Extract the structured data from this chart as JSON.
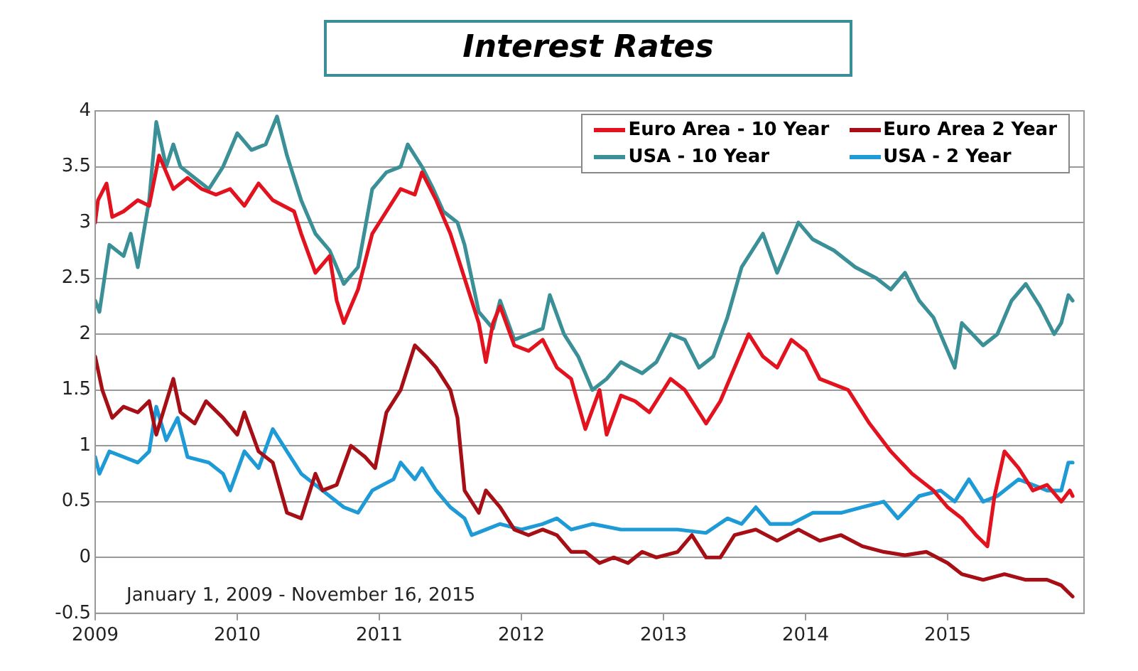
{
  "chart_data": {
    "type": "line",
    "title": "Interest Rates",
    "annotations": [
      "January 1, 2009 - November 16, 2015"
    ],
    "xlim": [
      2009,
      2015.96
    ],
    "xticks": [
      2009,
      2010,
      2011,
      2012,
      2013,
      2014,
      2015
    ],
    "ylim": [
      -0.5,
      4
    ],
    "yticks": [
      -0.5,
      0,
      0.5,
      1,
      1.5,
      2,
      2.5,
      3,
      3.5,
      4
    ],
    "grid": "y",
    "legend": "top right",
    "line_style": "solid",
    "series": [
      {
        "name": "Euro Area - 10 Year",
        "color": "#e2121e",
        "x": [
          2009.0,
          2009.02,
          2009.08,
          2009.12,
          2009.2,
          2009.3,
          2009.38,
          2009.45,
          2009.55,
          2009.65,
          2009.75,
          2009.85,
          2009.95,
          2010.05,
          2010.15,
          2010.25,
          2010.4,
          2010.45,
          2010.55,
          2010.65,
          2010.7,
          2010.75,
          2010.85,
          2010.95,
          2011.05,
          2011.15,
          2011.25,
          2011.3,
          2011.4,
          2011.5,
          2011.6,
          2011.7,
          2011.75,
          2011.8,
          2011.85,
          2011.95,
          2012.05,
          2012.15,
          2012.25,
          2012.35,
          2012.45,
          2012.55,
          2012.6,
          2012.7,
          2012.8,
          2012.9,
          2013.05,
          2013.15,
          2013.3,
          2013.4,
          2013.5,
          2013.6,
          2013.7,
          2013.8,
          2013.9,
          2014.0,
          2014.1,
          2014.3,
          2014.45,
          2014.6,
          2014.75,
          2014.9,
          2015.0,
          2015.1,
          2015.2,
          2015.28,
          2015.33,
          2015.4,
          2015.5,
          2015.6,
          2015.7,
          2015.8,
          2015.86,
          2015.88
        ],
        "values": [
          3.0,
          3.2,
          3.35,
          3.05,
          3.1,
          3.2,
          3.15,
          3.6,
          3.3,
          3.4,
          3.3,
          3.25,
          3.3,
          3.15,
          3.35,
          3.2,
          3.1,
          2.9,
          2.55,
          2.7,
          2.3,
          2.1,
          2.4,
          2.9,
          3.1,
          3.3,
          3.25,
          3.45,
          3.2,
          2.9,
          2.5,
          2.1,
          1.75,
          2.1,
          2.25,
          1.9,
          1.85,
          1.95,
          1.7,
          1.6,
          1.15,
          1.5,
          1.1,
          1.45,
          1.4,
          1.3,
          1.6,
          1.5,
          1.2,
          1.4,
          1.7,
          2.0,
          1.8,
          1.7,
          1.95,
          1.85,
          1.6,
          1.5,
          1.2,
          0.95,
          0.75,
          0.6,
          0.45,
          0.35,
          0.2,
          0.1,
          0.55,
          0.95,
          0.8,
          0.6,
          0.65,
          0.5,
          0.6,
          0.55
        ]
      },
      {
        "name": "Euro Area 2 Year",
        "color": "#a50f15",
        "x": [
          2009.0,
          2009.05,
          2009.12,
          2009.2,
          2009.3,
          2009.38,
          2009.43,
          2009.55,
          2009.6,
          2009.7,
          2009.78,
          2009.9,
          2010.0,
          2010.05,
          2010.15,
          2010.25,
          2010.35,
          2010.45,
          2010.55,
          2010.6,
          2010.7,
          2010.8,
          2010.9,
          2010.97,
          2011.05,
          2011.15,
          2011.25,
          2011.33,
          2011.4,
          2011.5,
          2011.55,
          2011.6,
          2011.7,
          2011.75,
          2011.85,
          2011.95,
          2012.05,
          2012.15,
          2012.25,
          2012.35,
          2012.45,
          2012.55,
          2012.65,
          2012.75,
          2012.85,
          2012.95,
          2013.1,
          2013.2,
          2013.3,
          2013.4,
          2013.5,
          2013.65,
          2013.8,
          2013.95,
          2014.1,
          2014.25,
          2014.4,
          2014.55,
          2014.7,
          2014.85,
          2015.0,
          2015.1,
          2015.25,
          2015.4,
          2015.55,
          2015.7,
          2015.8,
          2015.88
        ],
        "values": [
          1.8,
          1.5,
          1.25,
          1.35,
          1.3,
          1.4,
          1.1,
          1.6,
          1.3,
          1.2,
          1.4,
          1.25,
          1.1,
          1.3,
          0.95,
          0.85,
          0.4,
          0.35,
          0.75,
          0.6,
          0.65,
          1.0,
          0.9,
          0.8,
          1.3,
          1.5,
          1.9,
          1.8,
          1.7,
          1.5,
          1.25,
          0.6,
          0.4,
          0.6,
          0.45,
          0.25,
          0.2,
          0.25,
          0.2,
          0.05,
          0.05,
          -0.05,
          0.0,
          -0.05,
          0.05,
          0.0,
          0.05,
          0.2,
          0.0,
          0.0,
          0.2,
          0.25,
          0.15,
          0.25,
          0.15,
          0.2,
          0.1,
          0.05,
          0.02,
          0.05,
          -0.05,
          -0.15,
          -0.2,
          -0.15,
          -0.2,
          -0.2,
          -0.25,
          -0.35
        ]
      },
      {
        "name": "USA - 10 Year",
        "color": "#3a9096",
        "x": [
          2009.0,
          2009.03,
          2009.1,
          2009.2,
          2009.25,
          2009.3,
          2009.38,
          2009.43,
          2009.5,
          2009.55,
          2009.6,
          2009.7,
          2009.8,
          2009.9,
          2010.0,
          2010.1,
          2010.2,
          2010.28,
          2010.35,
          2010.45,
          2010.55,
          2010.65,
          2010.75,
          2010.85,
          2010.95,
          2011.05,
          2011.15,
          2011.2,
          2011.3,
          2011.38,
          2011.45,
          2011.55,
          2011.6,
          2011.7,
          2011.8,
          2011.85,
          2011.95,
          2012.05,
          2012.15,
          2012.2,
          2012.3,
          2012.4,
          2012.5,
          2012.6,
          2012.7,
          2012.85,
          2012.95,
          2013.05,
          2013.15,
          2013.25,
          2013.35,
          2013.45,
          2013.55,
          2013.7,
          2013.8,
          2013.95,
          2014.05,
          2014.2,
          2014.35,
          2014.5,
          2014.6,
          2014.7,
          2014.8,
          2014.9,
          2015.05,
          2015.1,
          2015.25,
          2015.35,
          2015.45,
          2015.55,
          2015.65,
          2015.75,
          2015.8,
          2015.85,
          2015.88
        ],
        "values": [
          2.3,
          2.2,
          2.8,
          2.7,
          2.9,
          2.6,
          3.2,
          3.9,
          3.5,
          3.7,
          3.5,
          3.4,
          3.3,
          3.5,
          3.8,
          3.65,
          3.7,
          3.95,
          3.6,
          3.2,
          2.9,
          2.75,
          2.45,
          2.6,
          3.3,
          3.45,
          3.5,
          3.7,
          3.5,
          3.3,
          3.1,
          3.0,
          2.8,
          2.2,
          2.05,
          2.3,
          1.95,
          2.0,
          2.05,
          2.35,
          2.0,
          1.8,
          1.5,
          1.6,
          1.75,
          1.65,
          1.75,
          2.0,
          1.95,
          1.7,
          1.8,
          2.15,
          2.6,
          2.9,
          2.55,
          3.0,
          2.85,
          2.75,
          2.6,
          2.5,
          2.4,
          2.55,
          2.3,
          2.15,
          1.7,
          2.1,
          1.9,
          2.0,
          2.3,
          2.45,
          2.25,
          2.0,
          2.1,
          2.35,
          2.3
        ]
      },
      {
        "name": "USA - 2 Year",
        "color": "#1e9ad6",
        "x": [
          2009.0,
          2009.03,
          2009.1,
          2009.2,
          2009.3,
          2009.38,
          2009.43,
          2009.5,
          2009.58,
          2009.65,
          2009.8,
          2009.9,
          2009.95,
          2010.05,
          2010.15,
          2010.25,
          2010.35,
          2010.45,
          2010.6,
          2010.75,
          2010.85,
          2010.95,
          2011.1,
          2011.15,
          2011.25,
          2011.3,
          2011.4,
          2011.5,
          2011.6,
          2011.65,
          2011.75,
          2011.85,
          2012.0,
          2012.15,
          2012.25,
          2012.35,
          2012.5,
          2012.7,
          2012.9,
          2013.1,
          2013.3,
          2013.45,
          2013.55,
          2013.65,
          2013.75,
          2013.9,
          2014.05,
          2014.25,
          2014.4,
          2014.55,
          2014.65,
          2014.8,
          2014.95,
          2015.05,
          2015.15,
          2015.25,
          2015.35,
          2015.5,
          2015.6,
          2015.7,
          2015.8,
          2015.85,
          2015.88
        ],
        "values": [
          0.9,
          0.75,
          0.95,
          0.9,
          0.85,
          0.95,
          1.35,
          1.05,
          1.25,
          0.9,
          0.85,
          0.75,
          0.6,
          0.95,
          0.8,
          1.15,
          0.95,
          0.75,
          0.6,
          0.45,
          0.4,
          0.6,
          0.7,
          0.85,
          0.7,
          0.8,
          0.6,
          0.45,
          0.35,
          0.2,
          0.25,
          0.3,
          0.25,
          0.3,
          0.35,
          0.25,
          0.3,
          0.25,
          0.25,
          0.25,
          0.22,
          0.35,
          0.3,
          0.45,
          0.3,
          0.3,
          0.4,
          0.4,
          0.45,
          0.5,
          0.35,
          0.55,
          0.6,
          0.5,
          0.7,
          0.5,
          0.55,
          0.7,
          0.65,
          0.6,
          0.6,
          0.85,
          0.85
        ]
      }
    ]
  }
}
